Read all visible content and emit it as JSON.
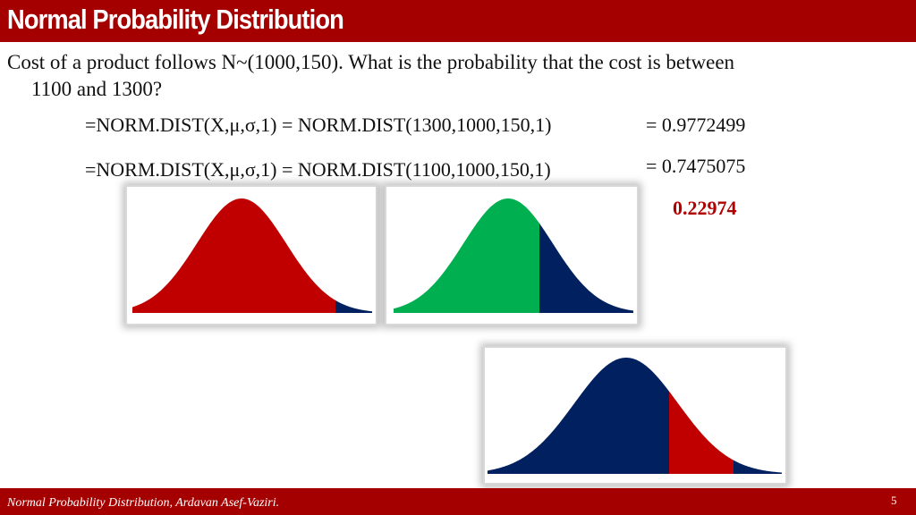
{
  "header": {
    "title": "Normal Probability Distribution"
  },
  "body": {
    "question_line1": "Cost of a product follows N~(1000,150). What is the probability that the cost is between",
    "question_line2": "1100 and 1300?",
    "formulas": [
      {
        "formula": "=NORM.DIST(X,μ,σ,1) = NORM.DIST(1300,1000,150,1)",
        "result": "= 0.9772499"
      },
      {
        "formula": "=NORM.DIST(X,μ,σ,1) = NORM.DIST(1100,1000,150,1)",
        "result": "= 0.7475075"
      }
    ],
    "answer": "0.22974"
  },
  "footer": {
    "text": "Normal Probability Distribution, Ardavan Asef-Vaziri.",
    "page": "5"
  }
}
